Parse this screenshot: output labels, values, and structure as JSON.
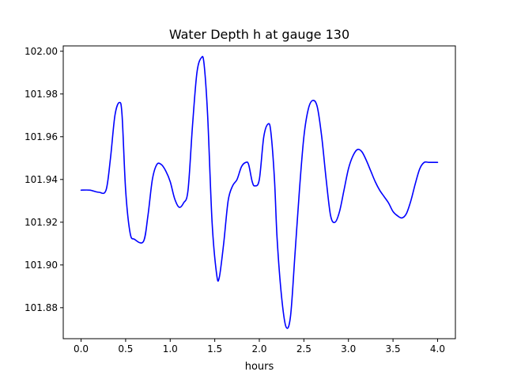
{
  "chart_data": {
    "type": "line",
    "title": "Water Depth h at gauge 130",
    "xlabel": "hours",
    "ylabel": "",
    "xlim": [
      -0.2,
      4.2
    ],
    "ylim": [
      101.8655,
      102.0025
    ],
    "grid": false,
    "line_color": "#0000ff",
    "x_ticks": [
      0.0,
      0.5,
      1.0,
      1.5,
      2.0,
      2.5,
      3.0,
      3.5,
      4.0
    ],
    "x_tick_labels": [
      "0.0",
      "0.5",
      "1.0",
      "1.5",
      "2.0",
      "2.5",
      "3.0",
      "3.5",
      "4.0"
    ],
    "y_ticks": [
      101.88,
      101.9,
      101.92,
      101.94,
      101.96,
      101.98,
      102.0
    ],
    "y_tick_labels": [
      "101.88",
      "101.90",
      "101.92",
      "101.94",
      "101.96",
      "101.98",
      "102.00"
    ],
    "series": [
      {
        "name": "h",
        "x": [
          0.0,
          0.1,
          0.2,
          0.28,
          0.33,
          0.38,
          0.43,
          0.46,
          0.5,
          0.55,
          0.6,
          0.7,
          0.75,
          0.8,
          0.85,
          0.9,
          0.95,
          1.0,
          1.05,
          1.1,
          1.15,
          1.2,
          1.25,
          1.3,
          1.35,
          1.38,
          1.42,
          1.47,
          1.52,
          1.55,
          1.6,
          1.65,
          1.7,
          1.75,
          1.8,
          1.85,
          1.88,
          1.92,
          1.95,
          2.0,
          2.05,
          2.1,
          2.13,
          2.17,
          2.2,
          2.25,
          2.3,
          2.35,
          2.4,
          2.45,
          2.5,
          2.55,
          2.6,
          2.65,
          2.7,
          2.75,
          2.8,
          2.85,
          2.9,
          2.95,
          3.0,
          3.05,
          3.1,
          3.15,
          3.2,
          3.25,
          3.3,
          3.35,
          3.4,
          3.45,
          3.5,
          3.55,
          3.6,
          3.65,
          3.7,
          3.75,
          3.8,
          3.85,
          3.9,
          3.95,
          4.0
        ],
        "values": [
          101.935,
          101.935,
          101.934,
          101.935,
          101.95,
          101.97,
          101.976,
          101.97,
          101.935,
          101.915,
          101.912,
          101.911,
          101.923,
          101.94,
          101.947,
          101.947,
          101.944,
          101.939,
          101.931,
          101.927,
          101.929,
          101.935,
          101.965,
          101.99,
          101.997,
          101.994,
          101.97,
          101.92,
          101.896,
          101.894,
          101.91,
          101.93,
          101.937,
          101.94,
          101.946,
          101.948,
          101.947,
          101.939,
          101.937,
          101.94,
          101.96,
          101.966,
          101.962,
          101.94,
          101.912,
          101.885,
          101.871,
          101.876,
          101.905,
          101.935,
          101.96,
          101.973,
          101.977,
          101.974,
          101.96,
          101.94,
          101.923,
          101.92,
          101.925,
          101.935,
          101.945,
          101.951,
          101.954,
          101.953,
          101.949,
          101.944,
          101.939,
          101.935,
          101.932,
          101.929,
          101.925,
          101.923,
          101.922,
          101.924,
          101.93,
          101.938,
          101.945,
          101.948,
          101.948,
          101.948,
          101.948
        ]
      }
    ]
  }
}
